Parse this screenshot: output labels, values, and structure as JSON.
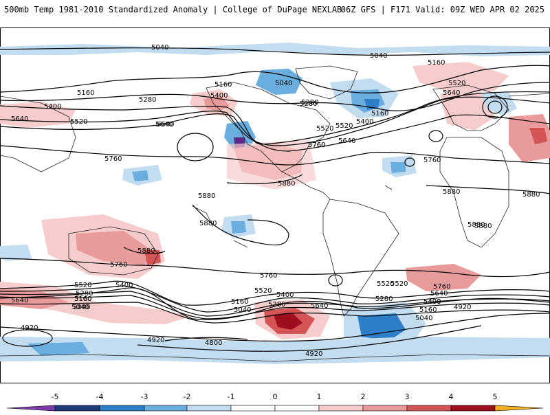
{
  "header": {
    "title": "500mb Temp 1981-2010 Standardized Anomaly | College of DuPage NEXLAB",
    "run_info": "06Z GFS | F171 Valid: 09Z WED APR 02 2025"
  },
  "colors": {
    "neg5": "#5a2a8a",
    "neg4": "#1f3a78",
    "neg3": "#2f7fc8",
    "neg2": "#6aaee0",
    "neg1": "#c2dcf0",
    "neutral": "#ffffff",
    "pos1": "#f6cccc",
    "pos2": "#e99b9b",
    "pos3": "#d35555",
    "pos4": "#9e0f1d",
    "pos5": "#6a0008",
    "pos_extreme": "#f0b020",
    "contour": "#000000",
    "coast": "#222222"
  },
  "colorbar": {
    "ticks": [
      "-5",
      "-4",
      "-3",
      "-2",
      "-1",
      "0",
      "1",
      "2",
      "3",
      "4",
      "5"
    ]
  },
  "contour_labels": [
    "5040",
    "5040",
    "5160",
    "5160",
    "5160",
    "5280",
    "5280",
    "5400",
    "5400",
    "5520",
    "5520",
    "5640",
    "5640",
    "5640",
    "5760",
    "5760",
    "5880",
    "5880",
    "5880",
    "5880",
    "5040",
    "5160",
    "5280",
    "5400",
    "5520",
    "5520",
    "5640",
    "5640",
    "5760",
    "5760",
    "5760",
    "5880",
    "5880",
    "5520",
    "5280",
    "5160",
    "5040",
    "4920",
    "4920",
    "4800",
    "4920",
    "5160",
    "5040",
    "5280",
    "5400",
    "5640",
    "5520",
    "5280",
    "5400",
    "5160",
    "5040",
    "4920",
    "5400",
    "5520",
    "5640",
    "5760",
    "5040",
    "5160",
    "5400",
    "5520",
    "5640",
    "5760",
    "5880",
    "5880"
  ]
}
